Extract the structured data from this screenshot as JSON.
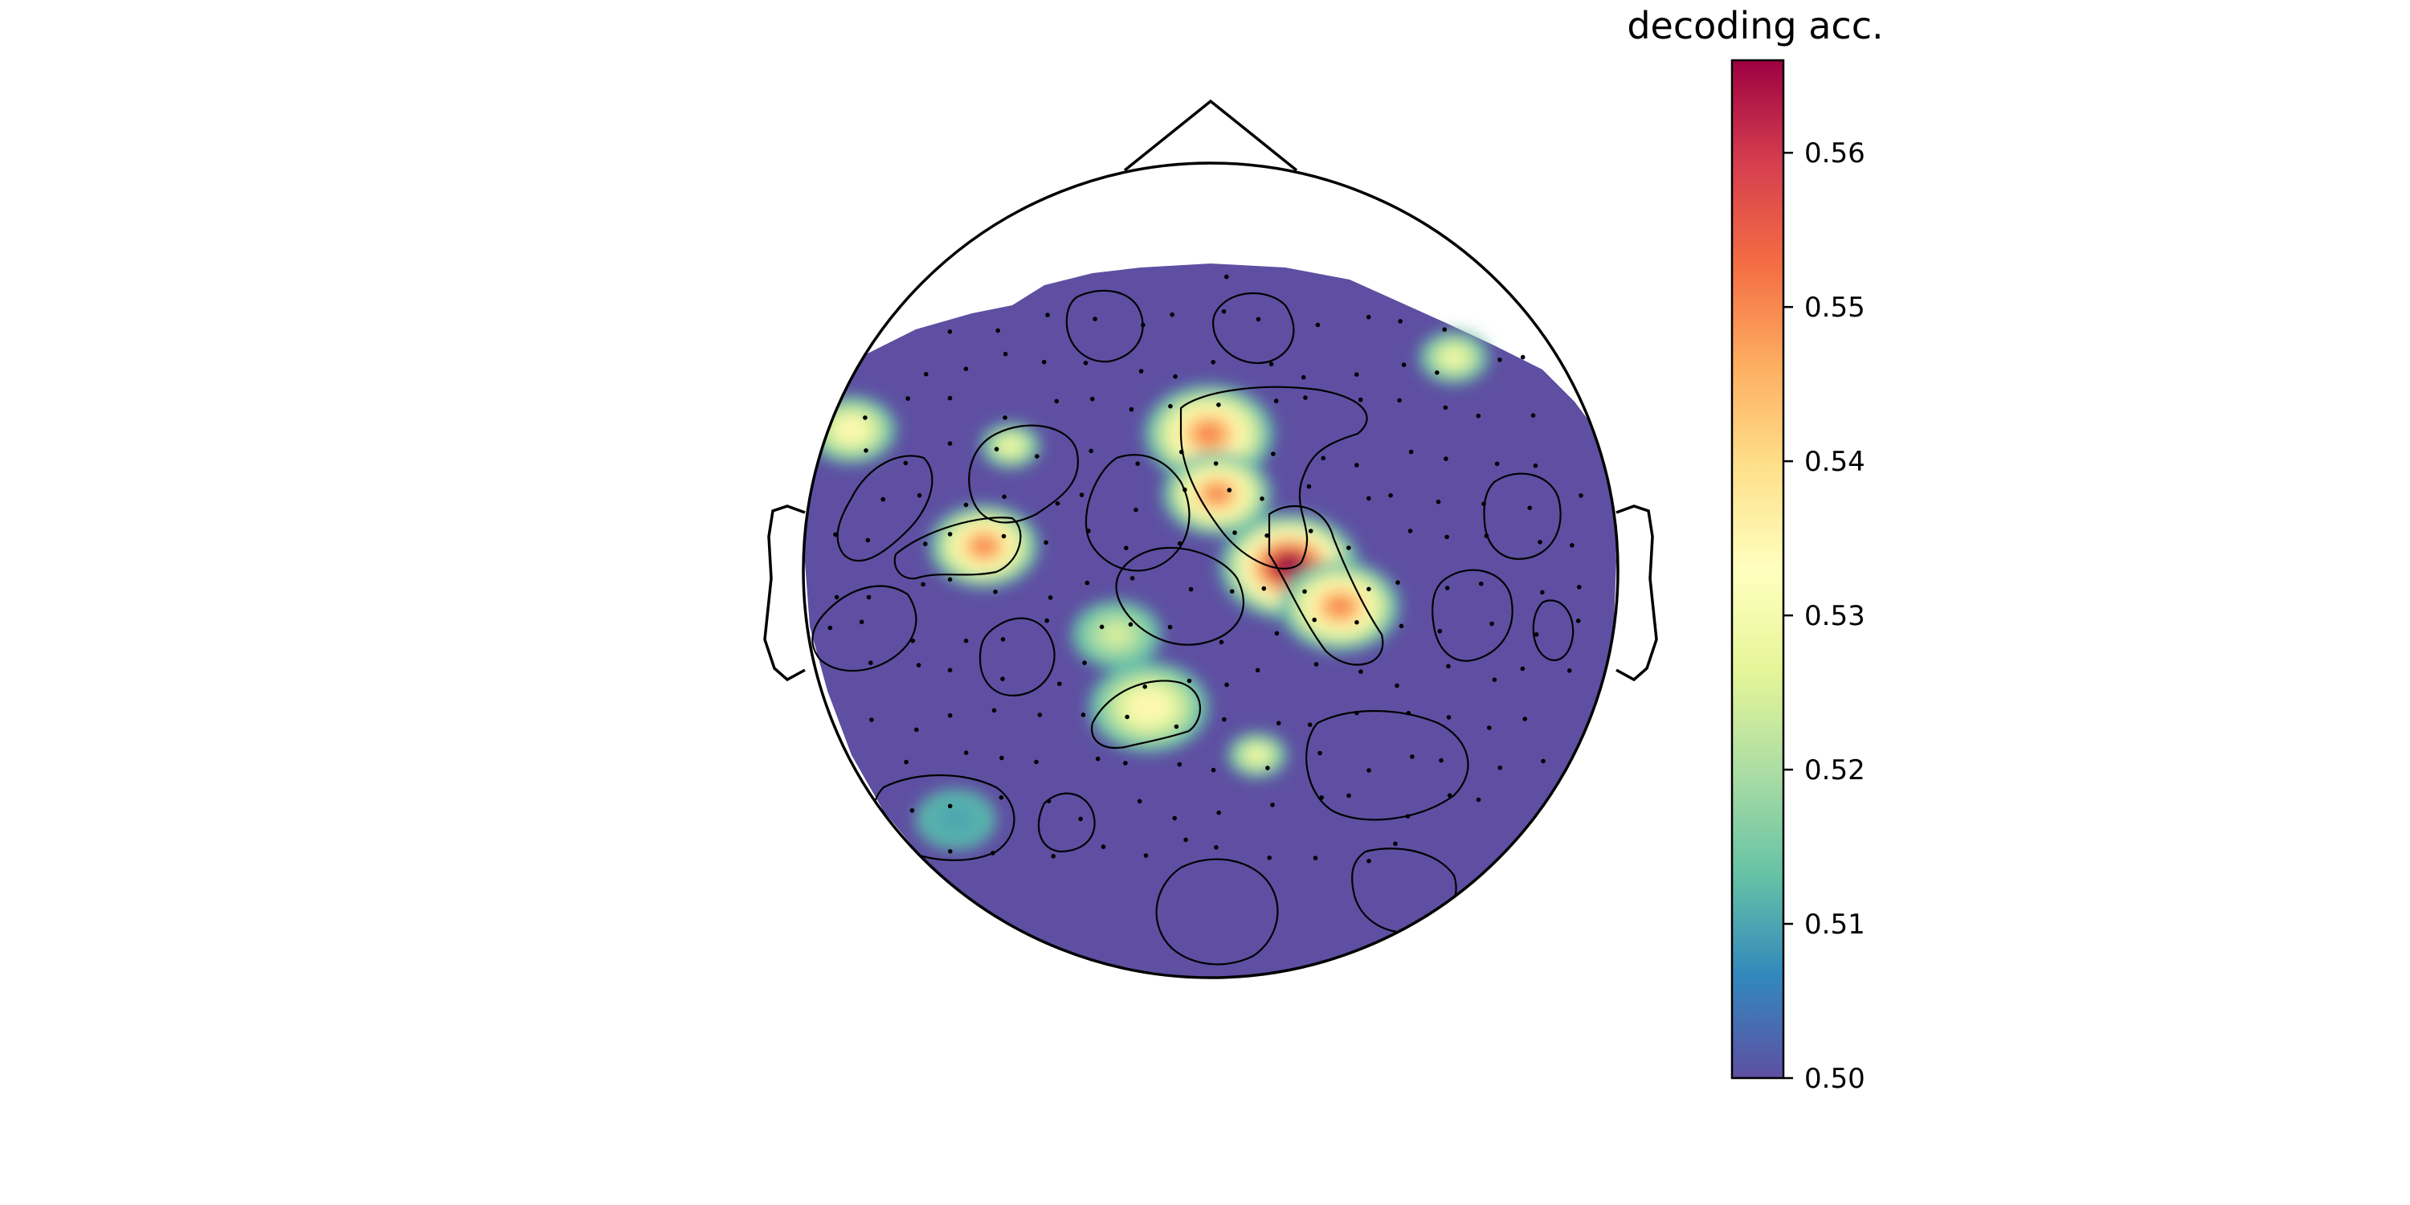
{
  "chart_data": {
    "type": "heatmap",
    "subtype": "topomap",
    "title": "",
    "colorbar": {
      "label": "decoding acc.",
      "vmin": 0.5,
      "vmax": 0.566,
      "ticks": [
        0.5,
        0.51,
        0.52,
        0.53,
        0.54,
        0.55,
        0.56
      ],
      "tick_labels": [
        "0.50",
        "0.51",
        "0.52",
        "0.53",
        "0.54",
        "0.55",
        "0.56"
      ],
      "colormap": "Spectral_r",
      "colormap_stops": [
        "#5e4fa2",
        "#3288bd",
        "#66c2a5",
        "#abdda4",
        "#e6f598",
        "#ffffbf",
        "#fee08b",
        "#fdae61",
        "#f46d43",
        "#d53e4f",
        "#9e0142"
      ]
    },
    "hotspots": [
      {
        "region": "right-central",
        "value": 0.566
      },
      {
        "region": "right-central-lower",
        "value": 0.55
      },
      {
        "region": "frontal-central-left",
        "value": 0.55
      },
      {
        "region": "frontal-central-mid",
        "value": 0.55
      },
      {
        "region": "left-temporal",
        "value": 0.55
      },
      {
        "region": "parietal-central",
        "value": 0.535
      },
      {
        "region": "left-frontal-edge",
        "value": 0.535
      },
      {
        "region": "right-frontal-edge",
        "value": 0.53
      },
      {
        "region": "left-central-small",
        "value": 0.53
      },
      {
        "region": "central-mid",
        "value": 0.525
      },
      {
        "region": "parietal-right-small",
        "value": 0.53
      },
      {
        "region": "left-occipital",
        "value": 0.51
      }
    ],
    "sensor_count": 204,
    "background_value": 0.5,
    "grid": false,
    "legend": "right"
  }
}
